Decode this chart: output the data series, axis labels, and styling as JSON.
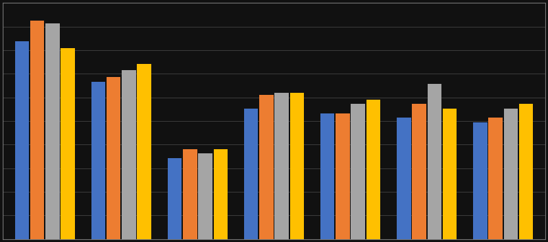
{
  "groups": 7,
  "series": 4,
  "bar_colors": [
    "#4472C4",
    "#ED7D31",
    "#A5A5A5",
    "#FFC000"
  ],
  "values": [
    [
      88,
      97,
      96,
      85
    ],
    [
      70,
      72,
      75,
      78
    ],
    [
      36,
      40,
      38,
      40
    ],
    [
      58,
      64,
      65,
      65
    ],
    [
      56,
      56,
      60,
      62
    ],
    [
      54,
      60,
      69,
      58
    ],
    [
      52,
      54,
      58,
      60
    ]
  ],
  "ylim": [
    0,
    105
  ],
  "background_color": "#111111",
  "grid_color": "#444444",
  "bar_width": 0.2,
  "n_gridlines": 10
}
